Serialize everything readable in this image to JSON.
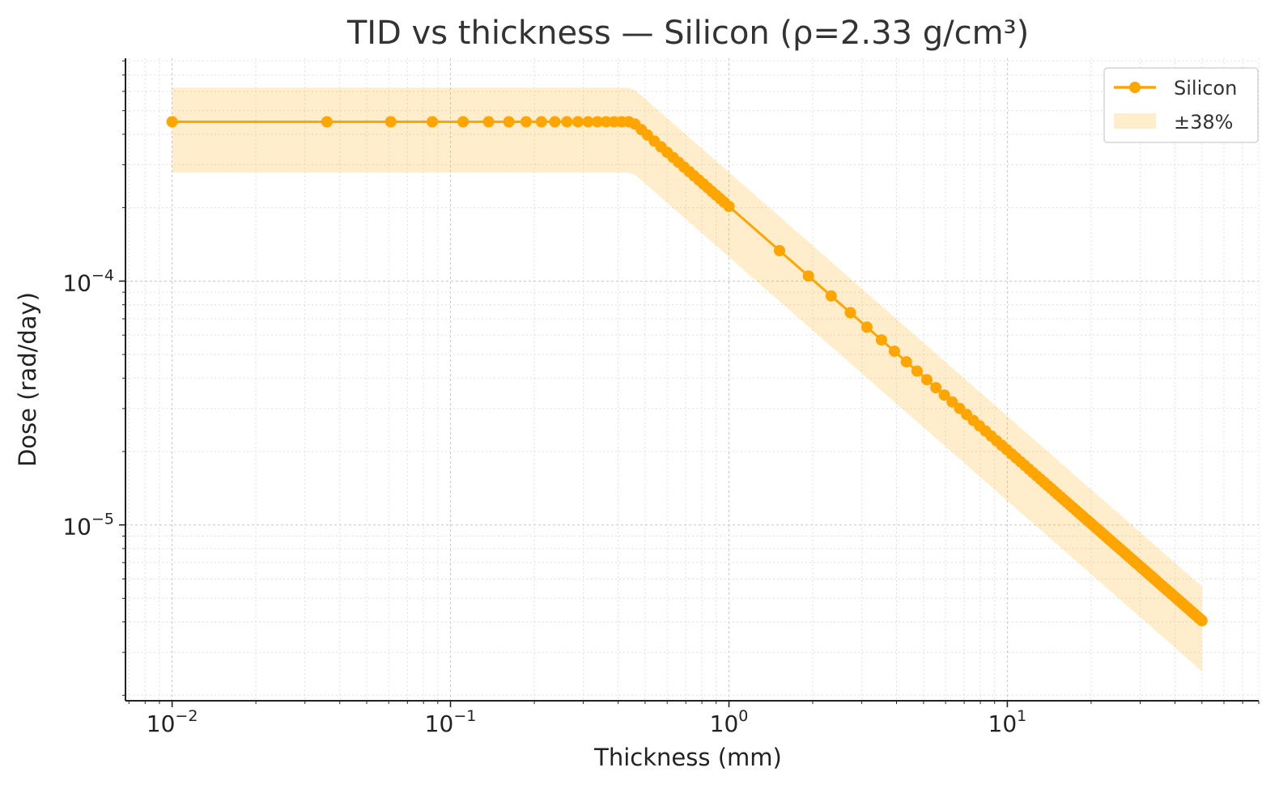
{
  "chart_data": {
    "type": "line",
    "title": "TID vs thickness — Silicon (ρ=2.33 g/cm³)",
    "xlabel": "Thickness (mm)",
    "ylabel": "Dose (rad/day)",
    "xscale": "log",
    "yscale": "log",
    "xlim": [
      0.0068,
      80
    ],
    "ylim": [
      1.9e-06,
      0.00082
    ],
    "x_ticks": [
      {
        "value": 0.01,
        "base": "10",
        "exp": "−2"
      },
      {
        "value": 0.1,
        "base": "10",
        "exp": "−1"
      },
      {
        "value": 1,
        "base": "10",
        "exp": "0"
      },
      {
        "value": 10,
        "base": "10",
        "exp": "1"
      }
    ],
    "y_ticks": [
      {
        "value": 0.0001,
        "base": "10",
        "exp": "−4"
      },
      {
        "value": 1e-05,
        "base": "10",
        "exp": "−5"
      }
    ],
    "grid": true,
    "legend_position": "top-right",
    "series": [
      {
        "name": "Silicon",
        "color": "#FFA500",
        "marker": "circle",
        "plateau_value": 0.00045,
        "knee_x": 0.45,
        "x": [
          0.01,
          0.036,
          0.061,
          0.086,
          0.111,
          0.137,
          0.162,
          0.187,
          0.212,
          0.237,
          0.262,
          0.287,
          0.312,
          0.337,
          0.362,
          0.387,
          0.412,
          0.437,
          0.46,
          0.485,
          0.51,
          0.54,
          0.57,
          0.6,
          0.63,
          0.66,
          0.69,
          0.72,
          0.75,
          0.78,
          0.81,
          0.84,
          0.87,
          0.9,
          0.93,
          0.96,
          1.0,
          1.52,
          1.93,
          2.33,
          2.73,
          3.13,
          3.53,
          3.93,
          4.34,
          4.74,
          5.14,
          5.54,
          5.94,
          6.34,
          6.74,
          7.14,
          7.55,
          7.95,
          8.35,
          8.75,
          9.15,
          9.55,
          9.95,
          10.36,
          10.76,
          11.16,
          11.56,
          11.96,
          12.36,
          12.76,
          13.16,
          13.57,
          13.97,
          14.37,
          14.77,
          15.17,
          15.57,
          15.97,
          16.38,
          16.78,
          17.18,
          17.58,
          17.98,
          18.38,
          18.78,
          19.18,
          19.59,
          19.99,
          20.39,
          20.79,
          21.19,
          21.59,
          21.99,
          22.4,
          22.8,
          23.2,
          23.6,
          24.0,
          24.4,
          24.8,
          25.2,
          25.61,
          26.01,
          26.41,
          26.81,
          27.21,
          27.61,
          28.01,
          28.42,
          28.82,
          29.22,
          29.62,
          30.02,
          30.42,
          30.82,
          31.22,
          31.63,
          32.03,
          32.43,
          32.83,
          33.23,
          33.63,
          34.03,
          34.44,
          34.84,
          35.24,
          35.64,
          36.04,
          36.44,
          36.84,
          37.24,
          37.65,
          38.05,
          38.45,
          38.85,
          39.25,
          39.65,
          40.05,
          40.46,
          40.86,
          41.26,
          41.66,
          42.06,
          42.46,
          42.86,
          43.26,
          43.67,
          44.07,
          44.47,
          44.87,
          45.27,
          45.67,
          46.07,
          46.48,
          46.88,
          47.28,
          47.68,
          48.08,
          48.48,
          48.88,
          49.28,
          49.69,
          50.0
        ]
      },
      {
        "name": "±38%",
        "type": "band",
        "color": "#FFA500",
        "relative_width": 0.38
      }
    ]
  }
}
